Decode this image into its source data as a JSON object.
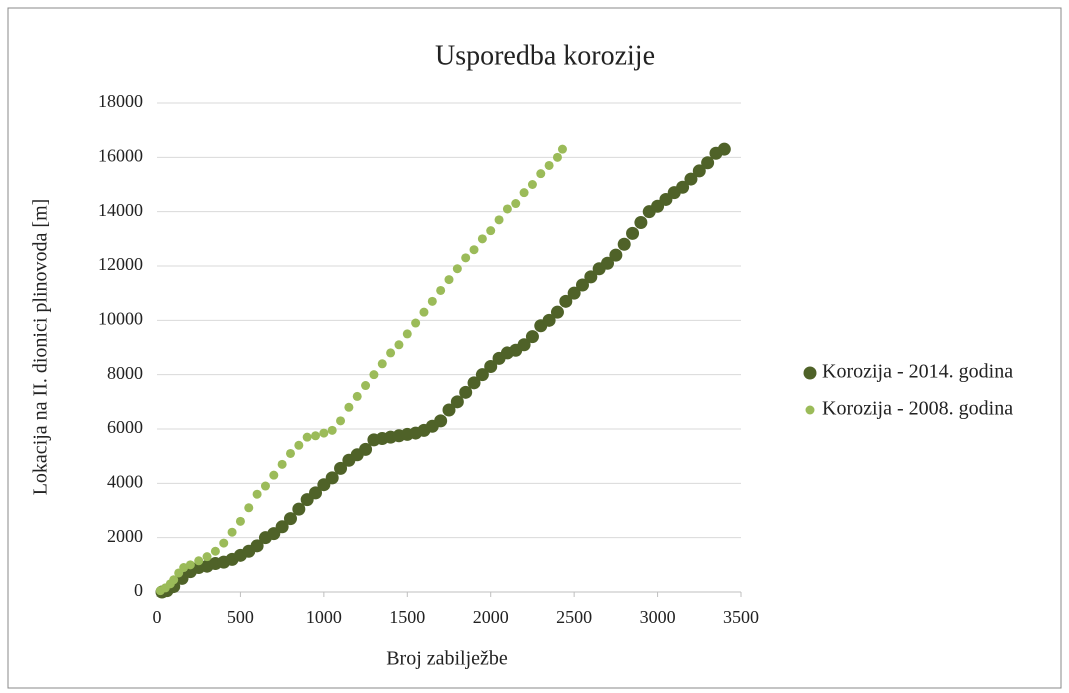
{
  "chart_data": {
    "type": "scatter",
    "title": "Usporedba korozije",
    "x_label": "Broj zabilježbe",
    "y_label": "Lokacija na II. dionici plinovoda [m]",
    "xlim": [
      0,
      3500
    ],
    "xticks": [
      0,
      500,
      1000,
      1500,
      2000,
      2500,
      3000,
      3500
    ],
    "ylim": [
      0,
      18000
    ],
    "yticks": [
      0,
      2000,
      4000,
      6000,
      8000,
      10000,
      12000,
      14000,
      16000,
      18000
    ],
    "grid": true,
    "legend": "right",
    "series": [
      {
        "name": "Korozija - 2014. godina",
        "color": "#4f6228",
        "x": [
          30,
          60,
          100,
          150,
          200,
          250,
          300,
          350,
          400,
          450,
          500,
          550,
          600,
          650,
          700,
          750,
          800,
          850,
          900,
          950,
          1000,
          1050,
          1100,
          1150,
          1200,
          1250,
          1300,
          1350,
          1400,
          1450,
          1500,
          1550,
          1600,
          1650,
          1700,
          1750,
          1800,
          1850,
          1900,
          1950,
          2000,
          2050,
          2100,
          2150,
          2200,
          2250,
          2300,
          2350,
          2400,
          2450,
          2500,
          2550,
          2600,
          2650,
          2700,
          2750,
          2800,
          2850,
          2900,
          2950,
          3000,
          3050,
          3100,
          3150,
          3200,
          3250,
          3300,
          3350,
          3400
        ],
        "values": [
          0,
          50,
          200,
          500,
          750,
          900,
          950,
          1050,
          1100,
          1200,
          1350,
          1500,
          1700,
          2000,
          2150,
          2400,
          2700,
          3050,
          3400,
          3650,
          3950,
          4200,
          4550,
          4850,
          5050,
          5250,
          5600,
          5650,
          5700,
          5750,
          5800,
          5850,
          5950,
          6100,
          6300,
          6700,
          7000,
          7350,
          7700,
          8000,
          8300,
          8600,
          8800,
          8900,
          9100,
          9400,
          9800,
          10000,
          10300,
          10700,
          11000,
          11300,
          11600,
          11900,
          12100,
          12400,
          12800,
          13200,
          13600,
          14000,
          14200,
          14450,
          14700,
          14900,
          15200,
          15500,
          15800,
          16150,
          16300
        ]
      },
      {
        "name": "Korozija - 2008. godina",
        "color": "#9bbb59",
        "x": [
          20,
          50,
          80,
          100,
          130,
          160,
          200,
          250,
          300,
          350,
          400,
          450,
          500,
          550,
          600,
          650,
          700,
          750,
          800,
          850,
          900,
          950,
          1000,
          1050,
          1100,
          1150,
          1200,
          1250,
          1300,
          1350,
          1400,
          1450,
          1500,
          1550,
          1600,
          1650,
          1700,
          1750,
          1800,
          1850,
          1900,
          1950,
          2000,
          2050,
          2100,
          2150,
          2200,
          2250,
          2300,
          2350,
          2400,
          2430
        ],
        "values": [
          50,
          150,
          300,
          450,
          700,
          900,
          1000,
          1150,
          1300,
          1500,
          1800,
          2200,
          2600,
          3100,
          3600,
          3900,
          4300,
          4700,
          5100,
          5400,
          5700,
          5750,
          5850,
          5950,
          6300,
          6800,
          7200,
          7600,
          8000,
          8400,
          8800,
          9100,
          9500,
          9900,
          10300,
          10700,
          11100,
          11500,
          11900,
          12300,
          12600,
          13000,
          13300,
          13700,
          14100,
          14300,
          14700,
          15000,
          15400,
          15700,
          16000,
          16300
        ]
      }
    ]
  }
}
